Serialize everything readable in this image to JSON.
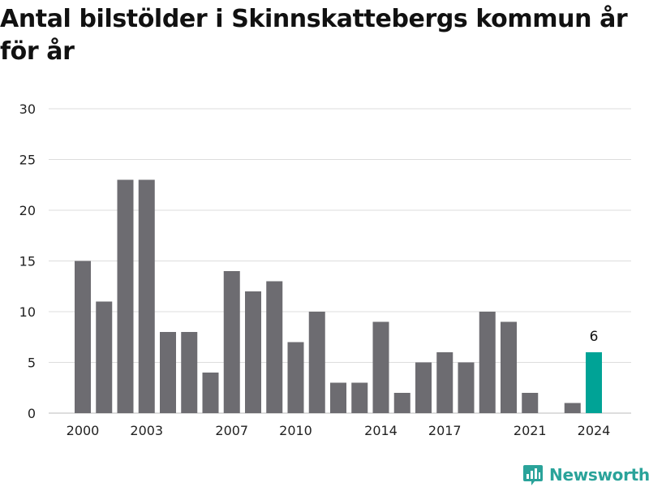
{
  "title": "Antal bilstölder i Skinnskattebergs kommun år för år",
  "brand": {
    "name": "Newsworthy",
    "icon": "bar-chart-logo-icon"
  },
  "colors": {
    "bar": "#6d6c71",
    "highlight": "#00a396",
    "grid": "#dddddd",
    "brand": "#2aa39a"
  },
  "chart_data": {
    "type": "bar",
    "title": "Antal bilstölder i Skinnskattebergs kommun år för år",
    "xlabel": "",
    "ylabel": "",
    "ylim": [
      0,
      30
    ],
    "yticks": [
      "0",
      "5",
      "10",
      "15",
      "20",
      "25",
      "30"
    ],
    "grid": true,
    "categories": [
      "2000",
      "2001",
      "2002",
      "2003",
      "2004",
      "2005",
      "2006",
      "2007",
      "2008",
      "2009",
      "2010",
      "2011",
      "2012",
      "2013",
      "2014",
      "2015",
      "2016",
      "2017",
      "2018",
      "2019",
      "2020",
      "2021",
      "2022",
      "2023",
      "2024"
    ],
    "values": [
      15,
      11,
      23,
      23,
      8,
      8,
      4,
      14,
      12,
      13,
      7,
      10,
      3,
      3,
      9,
      2,
      5,
      6,
      5,
      10,
      9,
      2,
      0,
      1,
      6
    ],
    "xticks_shown": [
      "2000",
      "2003",
      "2007",
      "2010",
      "2014",
      "2017",
      "2021",
      "2024"
    ],
    "highlight_category": "2024",
    "data_labels": [
      {
        "category": "2024",
        "text": "6"
      }
    ]
  }
}
